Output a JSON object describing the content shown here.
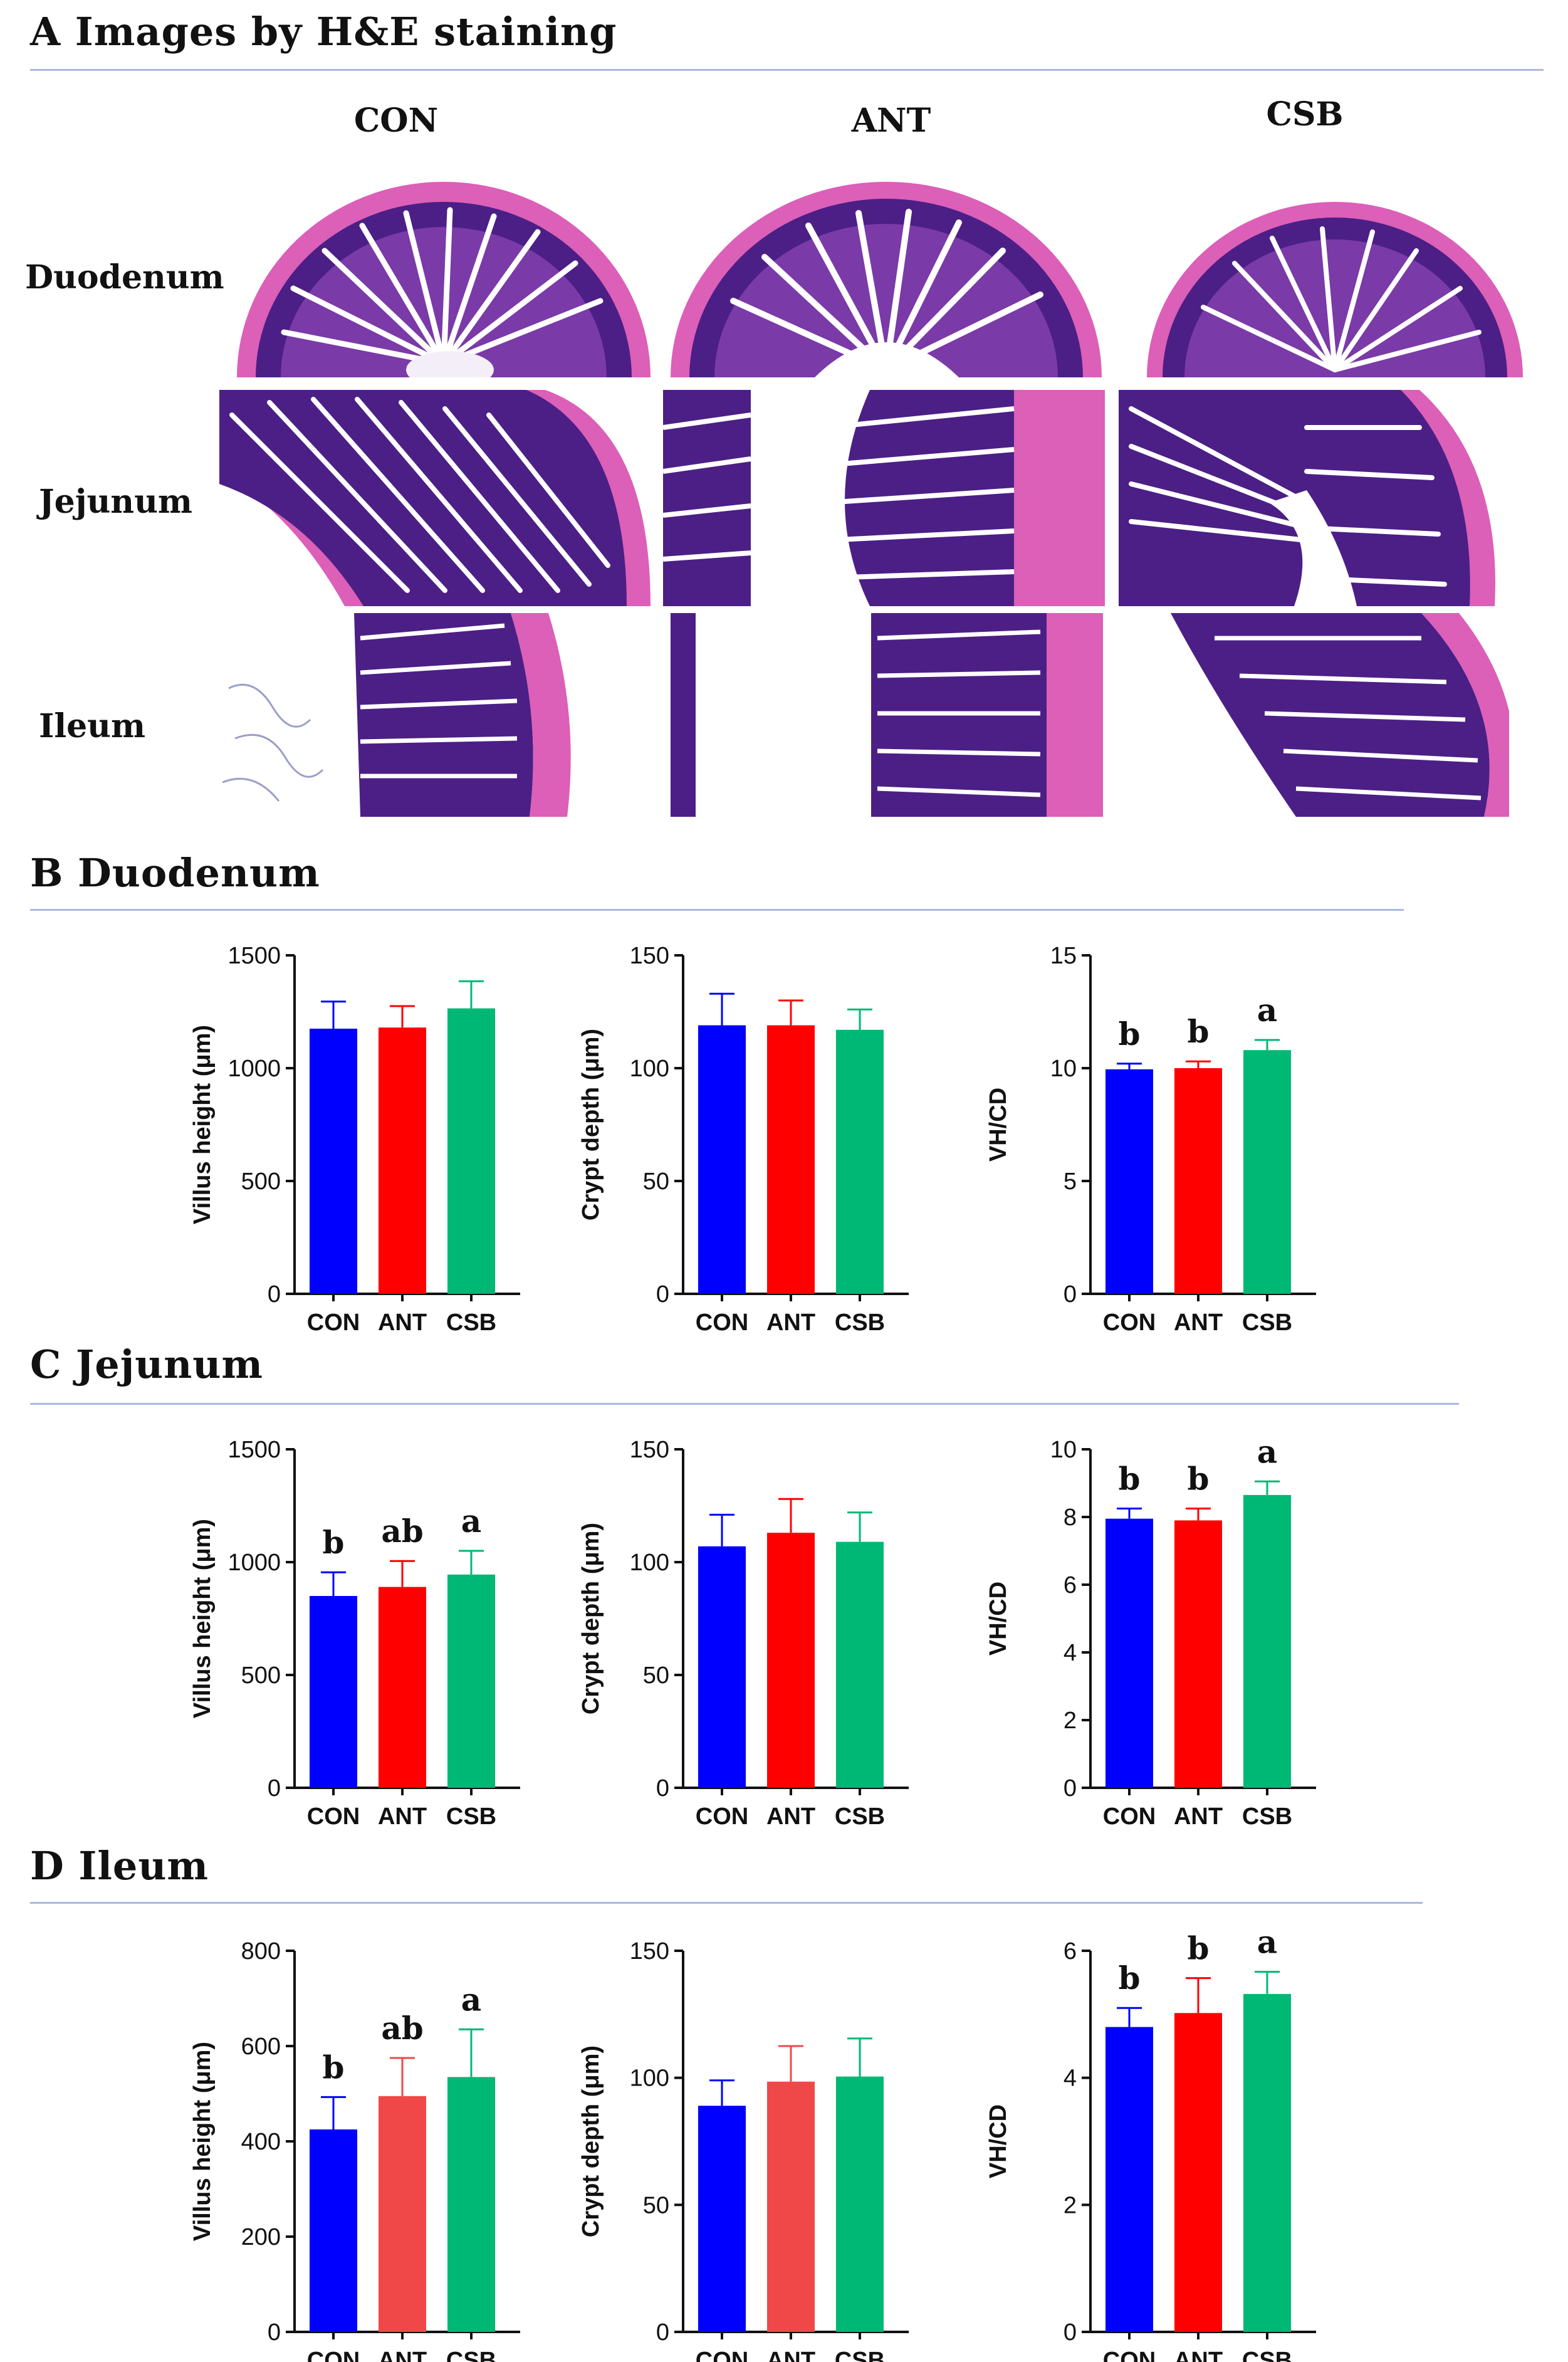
{
  "sections": {
    "a": "A  Images by H&E staining",
    "b": "B  Duodenum",
    "c": "C  Jejunum",
    "d": "D  Ileum"
  },
  "he_images": {
    "columns": [
      "CON",
      "ANT",
      "CSB"
    ],
    "rows": [
      "Duodenum",
      "Jejunum",
      "Ileum"
    ]
  },
  "colors": {
    "CON": "#0000ff",
    "ANT": "#ff0000",
    "ANT_light": "#f04848",
    "CSB": "#00b875",
    "rule": "#a9b8e0",
    "tissue_dark": "#4b1f86",
    "tissue_pink": "#dc5fb8"
  },
  "chart_data": [
    {
      "id": "duo-vh",
      "panel": "B",
      "type": "bar",
      "categories": [
        "CON",
        "ANT",
        "CSB"
      ],
      "values": [
        1175,
        1180,
        1265
      ],
      "errors": [
        120,
        95,
        120
      ],
      "ylabel": "Villus height (μm)",
      "ylim": [
        0,
        1500
      ],
      "yticks": [
        0,
        500,
        1000,
        1500
      ],
      "sig": [
        "",
        "",
        ""
      ],
      "bar_colors": [
        "CON",
        "ANT",
        "CSB"
      ]
    },
    {
      "id": "duo-cd",
      "panel": "B",
      "type": "bar",
      "categories": [
        "CON",
        "ANT",
        "CSB"
      ],
      "values": [
        119,
        119,
        117
      ],
      "errors": [
        14,
        11,
        9
      ],
      "ylabel": "Crypt depth (μm)",
      "ylim": [
        0,
        150
      ],
      "yticks": [
        0,
        50,
        100,
        150
      ],
      "sig": [
        "",
        "",
        ""
      ],
      "bar_colors": [
        "CON",
        "ANT",
        "CSB"
      ]
    },
    {
      "id": "duo-ratio",
      "panel": "B",
      "type": "bar",
      "categories": [
        "CON",
        "ANT",
        "CSB"
      ],
      "values": [
        9.95,
        10.0,
        10.8
      ],
      "errors": [
        0.25,
        0.3,
        0.45
      ],
      "ylabel": "VH/CD",
      "ylim": [
        0,
        15
      ],
      "yticks": [
        0,
        5,
        10,
        15
      ],
      "sig": [
        "b",
        "b",
        "a"
      ],
      "bar_colors": [
        "CON",
        "ANT",
        "CSB"
      ]
    },
    {
      "id": "jej-vh",
      "panel": "C",
      "type": "bar",
      "categories": [
        "CON",
        "ANT",
        "CSB"
      ],
      "values": [
        850,
        890,
        945
      ],
      "errors": [
        105,
        115,
        105
      ],
      "ylabel": "Villus height (μm)",
      "ylim": [
        0,
        1500
      ],
      "yticks": [
        0,
        500,
        1000,
        1500
      ],
      "sig": [
        "b",
        "ab",
        "a"
      ],
      "bar_colors": [
        "CON",
        "ANT",
        "CSB"
      ]
    },
    {
      "id": "jej-cd",
      "panel": "C",
      "type": "bar",
      "categories": [
        "CON",
        "ANT",
        "CSB"
      ],
      "values": [
        107,
        113,
        109
      ],
      "errors": [
        14,
        15,
        13
      ],
      "ylabel": "Crypt depth (μm)",
      "ylim": [
        0,
        150
      ],
      "yticks": [
        0,
        50,
        100,
        150
      ],
      "sig": [
        "",
        "",
        ""
      ],
      "bar_colors": [
        "CON",
        "ANT",
        "CSB"
      ]
    },
    {
      "id": "jej-ratio",
      "panel": "C",
      "type": "bar",
      "categories": [
        "CON",
        "ANT",
        "CSB"
      ],
      "values": [
        7.95,
        7.9,
        8.65
      ],
      "errors": [
        0.3,
        0.35,
        0.4
      ],
      "ylabel": "VH/CD",
      "ylim": [
        0,
        10
      ],
      "yticks": [
        0,
        2,
        4,
        6,
        8,
        10
      ],
      "sig": [
        "b",
        "b",
        "a"
      ],
      "bar_colors": [
        "CON",
        "ANT",
        "CSB"
      ]
    },
    {
      "id": "ile-vh",
      "panel": "D",
      "type": "bar",
      "categories": [
        "CON",
        "ANT",
        "CSB"
      ],
      "values": [
        425,
        495,
        535
      ],
      "errors": [
        68,
        80,
        100
      ],
      "ylabel": "Villus height (μm)",
      "ylim": [
        0,
        800
      ],
      "yticks": [
        0,
        200,
        400,
        600,
        800
      ],
      "sig": [
        "b",
        "ab",
        "a"
      ],
      "bar_colors": [
        "CON",
        "ANT_light",
        "CSB"
      ]
    },
    {
      "id": "ile-cd",
      "panel": "D",
      "type": "bar",
      "categories": [
        "CON",
        "ANT",
        "CSB"
      ],
      "values": [
        89,
        98.5,
        100.5
      ],
      "errors": [
        10,
        14,
        15
      ],
      "ylabel": "Crypt depth (μm)",
      "ylim": [
        0,
        150
      ],
      "yticks": [
        0,
        50,
        100,
        150
      ],
      "sig": [
        "",
        "",
        ""
      ],
      "bar_colors": [
        "CON",
        "ANT_light",
        "CSB"
      ]
    },
    {
      "id": "ile-ratio",
      "panel": "D",
      "type": "bar",
      "categories": [
        "CON",
        "ANT",
        "CSB"
      ],
      "values": [
        4.8,
        5.02,
        5.32
      ],
      "errors": [
        0.3,
        0.55,
        0.35
      ],
      "ylabel": "VH/CD",
      "ylim": [
        0,
        6
      ],
      "yticks": [
        0,
        2,
        4,
        6
      ],
      "sig": [
        "b",
        "b",
        "a"
      ],
      "bar_colors": [
        "CON",
        "ANT",
        "CSB"
      ]
    }
  ]
}
